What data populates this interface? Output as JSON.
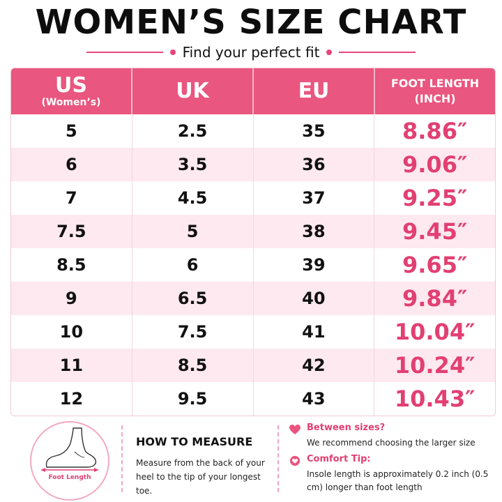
{
  "title": "WOMEN’S SIZE CHART",
  "subtitle": "Find your perfect fit",
  "colors": {
    "accent": "#e9567f",
    "value_text": "#e23f72",
    "row_alt": "#fde9ef"
  },
  "table": {
    "headers": {
      "us": "US",
      "us_sub": "(Women’s)",
      "uk": "UK",
      "eu": "EU",
      "foot_length_1": "FOOT LENGTH",
      "foot_length_2": "(INCH)"
    },
    "rows": [
      {
        "us": "5",
        "uk": "2.5",
        "eu": "35",
        "len": "8.86″"
      },
      {
        "us": "6",
        "uk": "3.5",
        "eu": "36",
        "len": "9.06″"
      },
      {
        "us": "7",
        "uk": "4.5",
        "eu": "37",
        "len": "9.25″"
      },
      {
        "us": "7.5",
        "uk": "5",
        "eu": "38",
        "len": "9.45″"
      },
      {
        "us": "8.5",
        "uk": "6",
        "eu": "39",
        "len": "9.65″"
      },
      {
        "us": "9",
        "uk": "6.5",
        "eu": "40",
        "len": "9.84″"
      },
      {
        "us": "10",
        "uk": "7.5",
        "eu": "41",
        "len": "10.04″"
      },
      {
        "us": "11",
        "uk": "8.5",
        "eu": "42",
        "len": "10.24″"
      },
      {
        "us": "12",
        "uk": "9.5",
        "eu": "43",
        "len": "10.43″"
      }
    ]
  },
  "measure": {
    "foot_label": "Foot Length",
    "title": "HOW TO MEASURE",
    "text": "Measure from the back of your heel to the tip of your longest toe."
  },
  "tips": [
    {
      "icon": "heart-icon",
      "head": "Between sizes?",
      "body": "We recommend choosing the larger size"
    },
    {
      "icon": "heart-icon",
      "head": "Comfort Tip:",
      "body": "Insole length is approximately 0.2 inch (0.5 cm) longer than foot length"
    }
  ]
}
